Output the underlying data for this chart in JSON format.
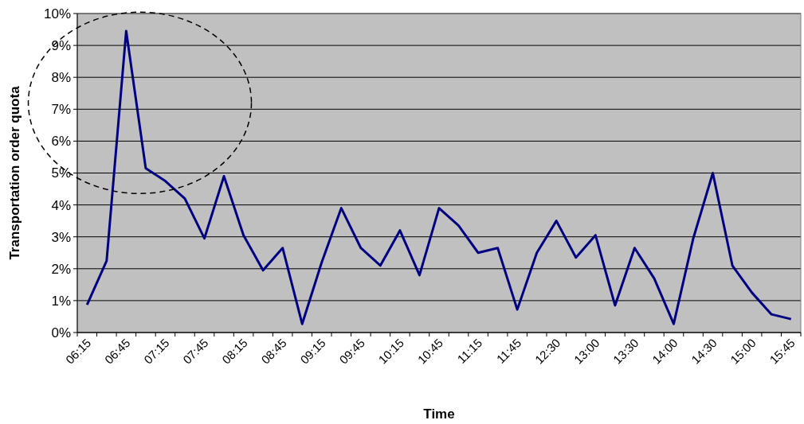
{
  "chart_data": {
    "type": "line",
    "xlabel": "Time",
    "ylabel": "Transportation order quota",
    "categories": [
      "06:15",
      null,
      "06:45",
      null,
      "07:15",
      null,
      "07:45",
      null,
      "08:15",
      null,
      "08:45",
      null,
      "09:15",
      null,
      "09:45",
      null,
      "10:15",
      null,
      "10:45",
      null,
      "11:15",
      null,
      "11:45",
      null,
      "12:30",
      null,
      "13:00",
      null,
      "13:30",
      null,
      "14:00",
      null,
      "14:30",
      null,
      "15:00",
      null,
      "15:45"
    ],
    "series": [
      {
        "color": "#000080",
        "values": [
          0.87,
          2.25,
          9.45,
          5.15,
          4.75,
          4.2,
          2.95,
          4.9,
          3.05,
          1.95,
          2.65,
          0.27,
          2.2,
          3.9,
          2.65,
          2.1,
          3.2,
          1.8,
          3.9,
          3.35,
          2.5,
          2.65,
          0.72,
          2.5,
          3.5,
          2.35,
          3.05,
          0.85,
          2.65,
          1.7,
          0.27,
          2.95,
          5.0,
          2.1,
          1.25,
          0.57,
          0.42
        ]
      }
    ],
    "ylim": [
      0,
      10
    ],
    "yticks": [
      {
        "value": 0,
        "label": "0%"
      },
      {
        "value": 1,
        "label": "1%"
      },
      {
        "value": 2,
        "label": "2%"
      },
      {
        "value": 3,
        "label": "3%"
      },
      {
        "value": 4,
        "label": "4%"
      },
      {
        "value": 5,
        "label": "5%"
      },
      {
        "value": 6,
        "label": "6%"
      },
      {
        "value": 7,
        "label": "7%"
      },
      {
        "value": 8,
        "label": "8%"
      },
      {
        "value": 9,
        "label": "9%"
      },
      {
        "value": 10,
        "label": "10%"
      }
    ],
    "grid": "y",
    "marker": "none",
    "line_style": "solid"
  }
}
